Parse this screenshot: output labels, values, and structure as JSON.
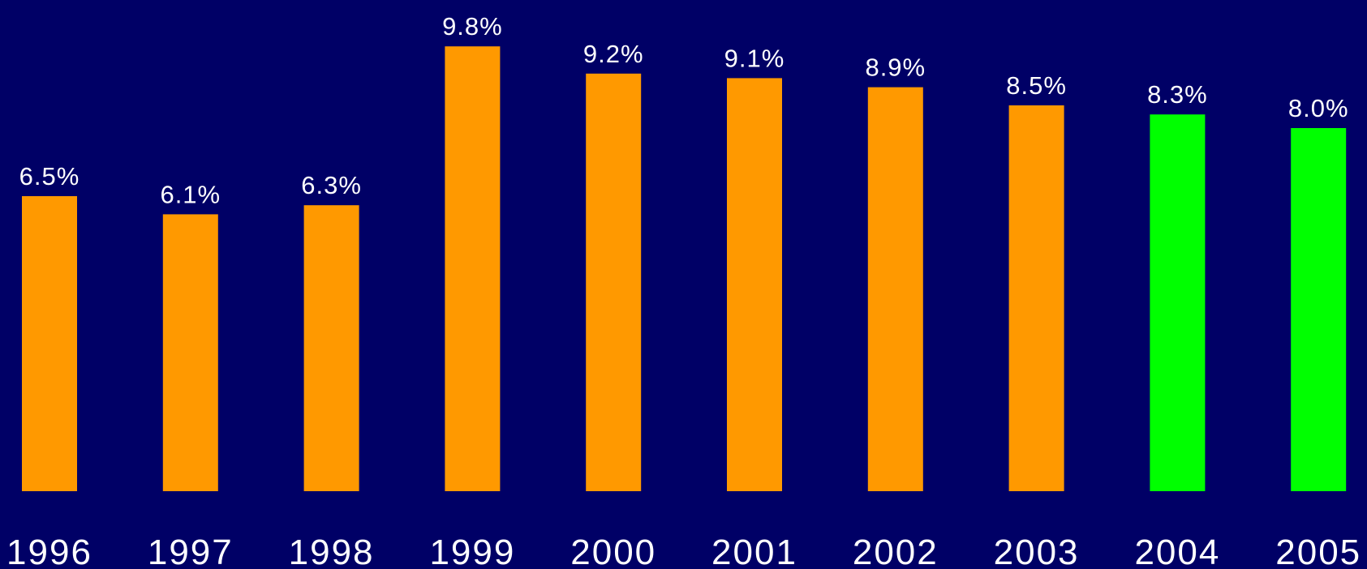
{
  "colors": {
    "background": "#000066",
    "bar_primary": "#FF9900",
    "bar_highlight": "#00FF00",
    "text": "#FFFFFF"
  },
  "chart_data": {
    "type": "bar",
    "categories": [
      "1996",
      "1997",
      "1998",
      "1999",
      "2000",
      "2001",
      "2002",
      "2003",
      "2004",
      "2005"
    ],
    "values": [
      6.5,
      6.1,
      6.3,
      9.8,
      9.2,
      9.1,
      8.9,
      8.5,
      8.3,
      8.0
    ],
    "data_labels": [
      "6.5%",
      "6.1%",
      "6.3%",
      "9.8%",
      "9.2%",
      "9.1%",
      "8.9%",
      "8.5%",
      "8.3%",
      "8.0%"
    ],
    "bar_colors": [
      "#FF9900",
      "#FF9900",
      "#FF9900",
      "#FF9900",
      "#FF9900",
      "#FF9900",
      "#FF9900",
      "#FF9900",
      "#00FF00",
      "#00FF00"
    ],
    "title": "",
    "xlabel": "",
    "ylabel": "",
    "ylim": [
      0,
      10
    ],
    "grid": false,
    "legend": false
  }
}
